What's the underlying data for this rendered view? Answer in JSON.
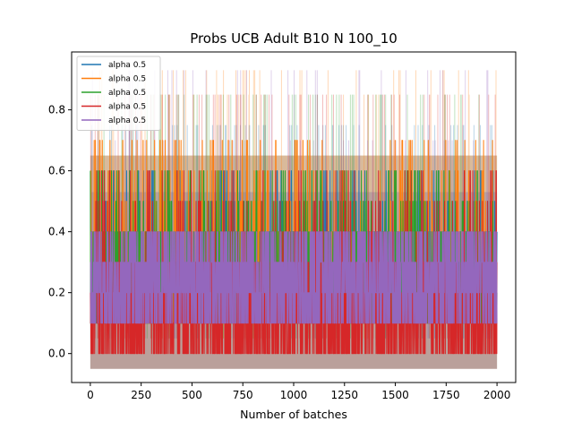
{
  "chart_data": {
    "type": "line",
    "title": "Probs UCB Adult B10 N 100_10",
    "xlabel": "Number of batches",
    "ylabel": "",
    "xlim": [
      -92,
      2092
    ],
    "ylim": [
      -0.095,
      0.99
    ],
    "x_ticks": [
      0,
      250,
      500,
      750,
      1000,
      1250,
      1500,
      1750,
      2000
    ],
    "x_tick_labels": [
      "0",
      "250",
      "500",
      "750",
      "1000",
      "1250",
      "1500",
      "1750",
      "2000"
    ],
    "y_ticks": [
      0.0,
      0.2,
      0.4,
      0.6,
      0.8
    ],
    "y_tick_labels": [
      "0.0",
      "0.2",
      "0.4",
      "0.6",
      "0.8"
    ],
    "grid": false,
    "legend_position": "top-left",
    "n_points": 2000,
    "series": [
      {
        "name": "alpha 0.5",
        "color": "#1f77b4",
        "levels": [
          0.1,
          0.2,
          0.3,
          0.4,
          0.5,
          0.6
        ],
        "shaded_band": [
          -0.05,
          0.53
        ],
        "rare_peaks": [
          0.75
        ]
      },
      {
        "name": "alpha 0.5",
        "color": "#ff7f0e",
        "levels": [
          0.1,
          0.2,
          0.3,
          0.4,
          0.5,
          0.6,
          0.7
        ],
        "shaded_band": [
          -0.05,
          0.65
        ],
        "rare_peaks": [
          0.85,
          0.93
        ]
      },
      {
        "name": "alpha 0.5",
        "color": "#2ca02c",
        "levels": [
          0.1,
          0.2,
          0.3,
          0.4,
          0.5,
          0.6
        ],
        "shaded_band": [
          -0.05,
          0.65
        ],
        "rare_peaks": [
          0.85
        ]
      },
      {
        "name": "alpha 0.5",
        "color": "#d62728",
        "levels": [
          0.0,
          0.1,
          0.2,
          0.3,
          0.4,
          0.5,
          0.6
        ],
        "shaded_band": [
          -0.05,
          0.65
        ],
        "rare_peaks": [
          0.85
        ]
      },
      {
        "name": "alpha 0.5",
        "color": "#9467bd",
        "levels": [
          0.1,
          0.2,
          0.3,
          0.4
        ],
        "shaded_band": [
          -0.05,
          0.53
        ],
        "rare_peaks": [
          0.7,
          0.93
        ]
      }
    ]
  }
}
